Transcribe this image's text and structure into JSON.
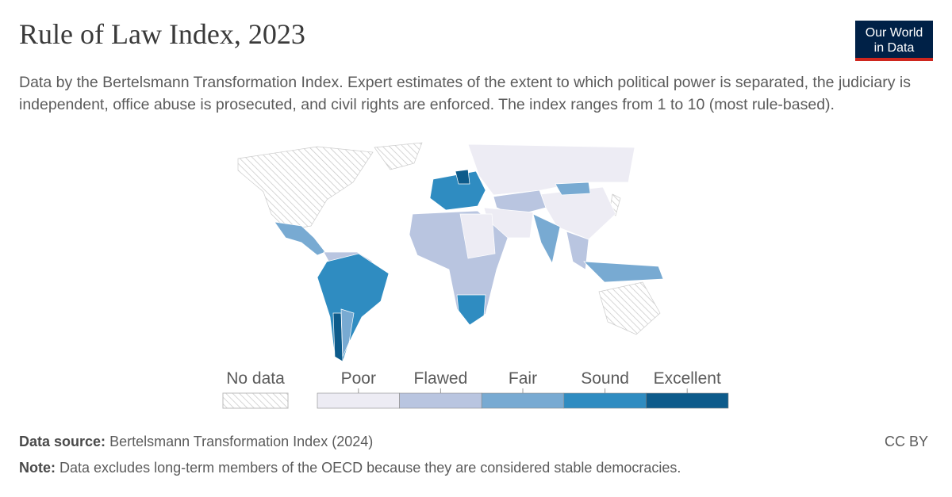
{
  "header": {
    "title": "Rule of Law Index, 2023",
    "subtitle": "Data by the Bertelsmann Transformation Index. Expert estimates of the extent to which political power is separated, the judiciary is independent, office abuse is prosecuted, and civil rights are enforced. The index ranges from 1 to 10 (most rule-based).",
    "logo": [
      "Our World",
      "in Data"
    ]
  },
  "legend": {
    "no_data": "No data",
    "categories": [
      {
        "label": "Poor",
        "color": "#edecf4"
      },
      {
        "label": "Flawed",
        "color": "#b9c5e0"
      },
      {
        "label": "Fair",
        "color": "#78aad2"
      },
      {
        "label": "Sound",
        "color": "#2f8cc1"
      },
      {
        "label": "Excellent",
        "color": "#0d5b8b"
      }
    ]
  },
  "footer": {
    "source_label": "Data source:",
    "source": "Bertelsmann Transformation Index (2024)",
    "license": "CC BY",
    "note_label": "Note:",
    "note": "Data excludes long-term members of the OECD because they are considered stable democracies."
  }
}
